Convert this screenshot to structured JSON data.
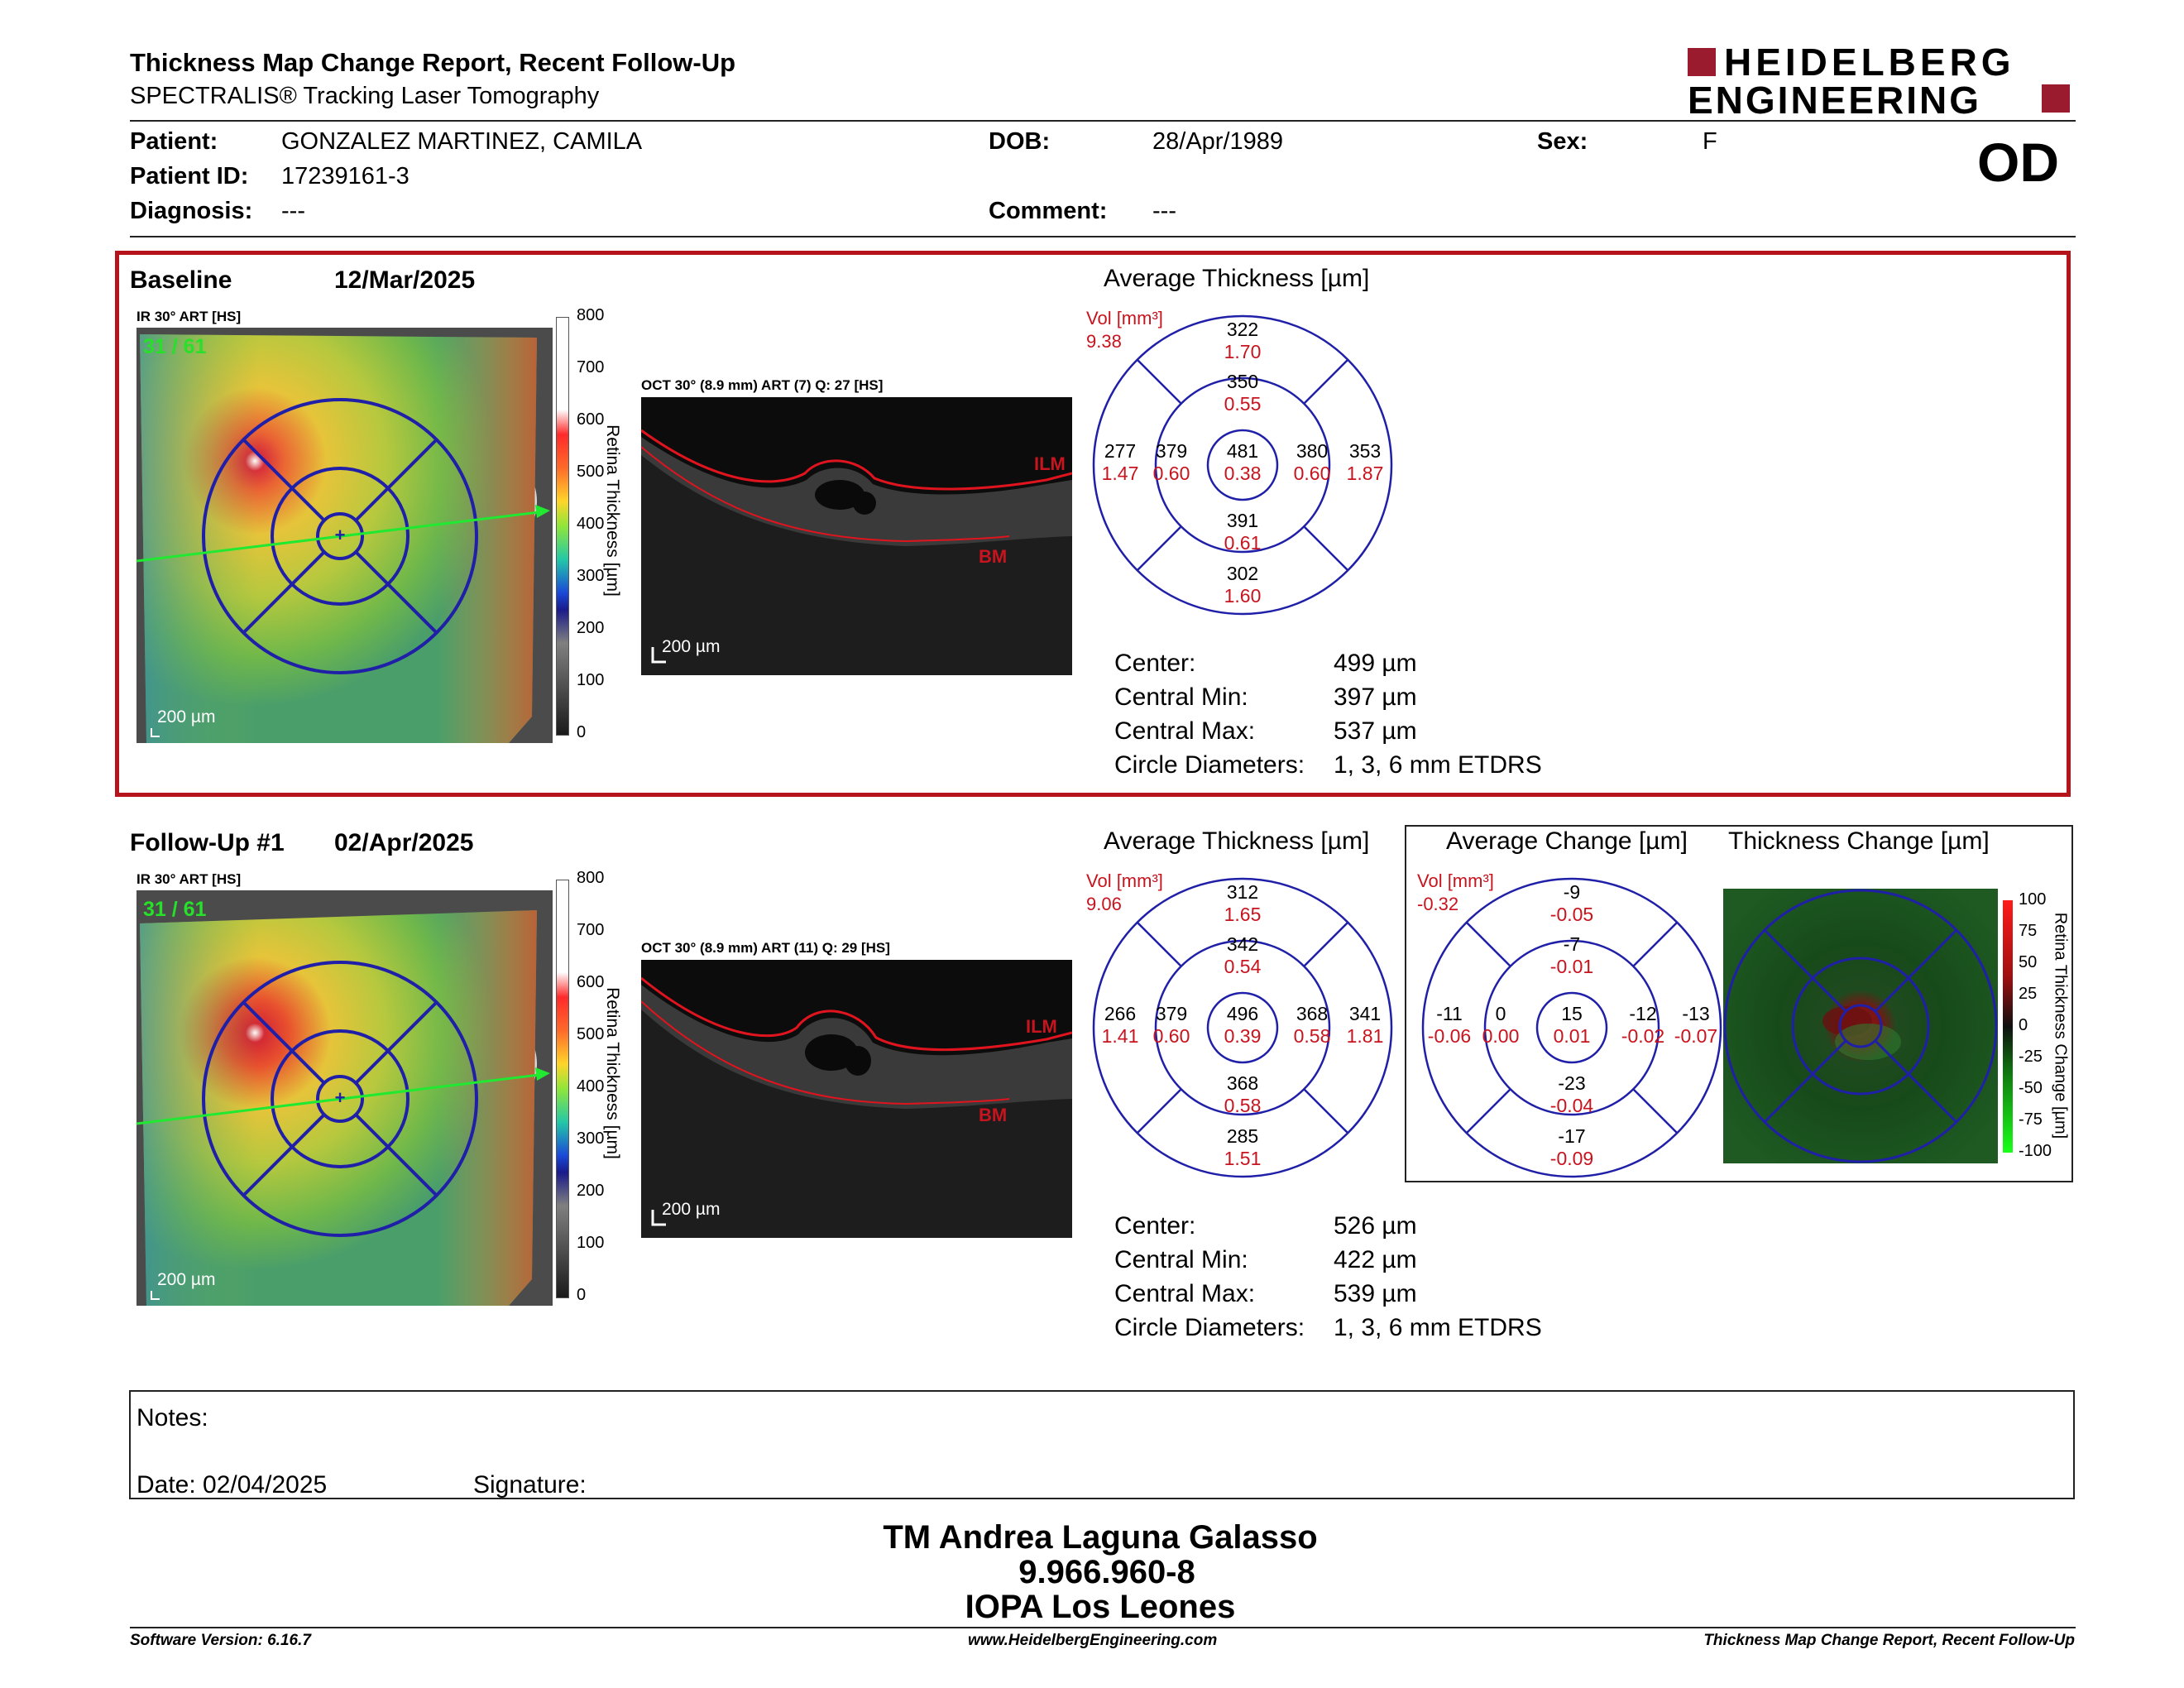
{
  "header": {
    "title": "Thickness Map Change Report, Recent Follow-Up",
    "subtitle": "SPECTRALIS® Tracking Laser Tomography",
    "logo_line1": "HEIDELBERG",
    "logo_line2": "ENGINEERING",
    "eye": "OD"
  },
  "patient": {
    "name_label": "Patient:",
    "name": "GONZALEZ MARTINEZ, CAMILA",
    "id_label": "Patient ID:",
    "id": "17239161-3",
    "diag_label": "Diagnosis:",
    "diag": "---",
    "dob_label": "DOB:",
    "dob": "28/Apr/1989",
    "comment_label": "Comment:",
    "comment": "---",
    "sex_label": "Sex:",
    "sex": "F"
  },
  "colors": {
    "accent": "#b5141b",
    "etdrs_blue": "#1f1fa8",
    "vol_red": "#c8141e"
  },
  "scale": {
    "thickness_label": "Retina Thickness [µm]",
    "thickness_ticks": [
      "800",
      "700",
      "600",
      "500",
      "400",
      "300",
      "200",
      "100",
      "0"
    ],
    "change_label": "Retina Thickness Change [µm]",
    "change_ticks": [
      "100",
      "75",
      "50",
      "25",
      "0",
      "-25",
      "-50",
      "-75",
      "-100"
    ]
  },
  "baseline": {
    "label": "Baseline",
    "date": "12/Mar/2025",
    "ir_label": "IR 30° ART [HS]",
    "frame": "31 / 61",
    "ir_scale": "200 µm",
    "oct_label": "OCT 30° (8.9 mm) ART (7) Q: 27 [HS]",
    "oct_scale": "200 µm",
    "ilm": "ILM",
    "bm": "BM",
    "avg_title": "Average Thickness [µm]",
    "vol_label": "Vol [mm³]",
    "vol_total": "9.38",
    "sectors": {
      "outer_sup": "322",
      "outer_sup_v": "1.70",
      "inner_sup": "350",
      "inner_sup_v": "0.55",
      "outer_temp": "277",
      "outer_temp_v": "1.47",
      "inner_temp": "379",
      "inner_temp_v": "0.60",
      "center": "481",
      "center_v": "0.38",
      "inner_nas": "380",
      "inner_nas_v": "0.60",
      "outer_nas": "353",
      "outer_nas_v": "1.87",
      "inner_inf": "391",
      "inner_inf_v": "0.61",
      "outer_inf": "302",
      "outer_inf_v": "1.60"
    },
    "stats": [
      {
        "label": "Center:",
        "value": "499 µm"
      },
      {
        "label": "Central Min:",
        "value": "397 µm"
      },
      {
        "label": "Central Max:",
        "value": "537 µm"
      },
      {
        "label": "Circle Diameters:",
        "value": "1, 3, 6 mm ETDRS"
      }
    ]
  },
  "followup": {
    "label": "Follow-Up #1",
    "date": "02/Apr/2025",
    "ir_label": "IR 30° ART [HS]",
    "frame": "31 / 61",
    "ir_scale": "200 µm",
    "oct_label": "OCT 30° (8.9 mm) ART (11) Q: 29 [HS]",
    "oct_scale": "200 µm",
    "ilm": "ILM",
    "bm": "BM",
    "avg_title": "Average Thickness [µm]",
    "vol_label": "Vol [mm³]",
    "vol_total": "9.06",
    "sectors": {
      "outer_sup": "312",
      "outer_sup_v": "1.65",
      "inner_sup": "342",
      "inner_sup_v": "0.54",
      "outer_temp": "266",
      "outer_temp_v": "1.41",
      "inner_temp": "379",
      "inner_temp_v": "0.60",
      "center": "496",
      "center_v": "0.39",
      "inner_nas": "368",
      "inner_nas_v": "0.58",
      "outer_nas": "341",
      "outer_nas_v": "1.81",
      "inner_inf": "368",
      "inner_inf_v": "0.58",
      "outer_inf": "285",
      "outer_inf_v": "1.51"
    },
    "stats": [
      {
        "label": "Center:",
        "value": "526 µm"
      },
      {
        "label": "Central Min:",
        "value": "422 µm"
      },
      {
        "label": "Central Max:",
        "value": "539 µm"
      },
      {
        "label": "Circle Diameters:",
        "value": "1, 3, 6 mm ETDRS"
      }
    ],
    "change_title": "Average Change [µm]",
    "thick_change_title": "Thickness Change [µm]",
    "change_vol_label": "Vol [mm³]",
    "change_vol_total": "-0.32",
    "change": {
      "outer_sup": "-9",
      "outer_sup_v": "-0.05",
      "inner_sup": "-7",
      "inner_sup_v": "-0.01",
      "outer_temp": "-11",
      "outer_temp_v": "-0.06",
      "inner_temp": "0",
      "inner_temp_v": "0.00",
      "center": "15",
      "center_v": "0.01",
      "inner_nas": "-12",
      "inner_nas_v": "-0.02",
      "outer_nas": "-13",
      "outer_nas_v": "-0.07",
      "inner_inf": "-23",
      "inner_inf_v": "-0.04",
      "outer_inf": "-17",
      "outer_inf_v": "-0.09"
    }
  },
  "notes": {
    "notes_label": "Notes:",
    "date_label": "Date: 02/04/2025",
    "signature_label": "Signature:"
  },
  "signatory": {
    "name": "TM Andrea Laguna Galasso",
    "rut": "9.966.960-8",
    "institution": "IOPA Los Leones"
  },
  "footer": {
    "software": "Software Version: 6.16.7",
    "website": "www.HeidelbergEngineering.com",
    "report": "Thickness Map Change Report, Recent Follow-Up"
  }
}
